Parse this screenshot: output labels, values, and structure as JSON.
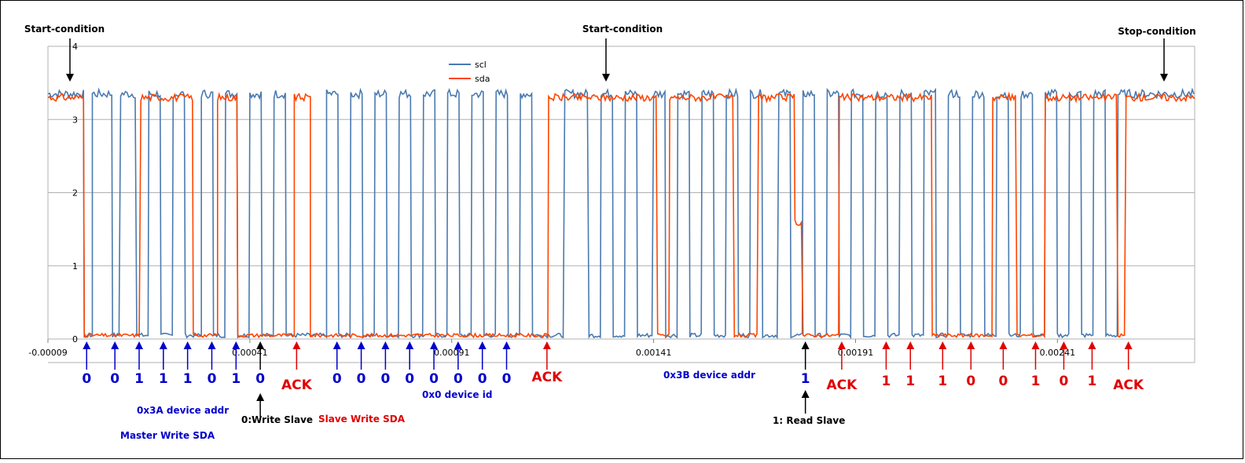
{
  "chart_data": {
    "type": "line",
    "title": "",
    "xlabel": "",
    "ylabel": "",
    "ylim": [
      0,
      4
    ],
    "xlim": [
      -9e-05,
      0.00275
    ],
    "yticks": [
      "0",
      "1",
      "2",
      "3",
      "4"
    ],
    "xticks": [
      {
        "value": -9e-05,
        "label": "-0.00009"
      },
      {
        "value": 0.00041,
        "label": "0.00041"
      },
      {
        "value": 0.00091,
        "label": "0.00091"
      },
      {
        "value": 0.00141,
        "label": "0.00141"
      },
      {
        "value": 0.00191,
        "label": "0.00191"
      },
      {
        "value": 0.00241,
        "label": "0.00241"
      }
    ],
    "grid": "horizontal",
    "legend_position": "top-center",
    "series": [
      {
        "name": "scl",
        "color": "#4a7ab0",
        "high": 3.35,
        "low": 0.05,
        "idle_high_until": 0.0,
        "low_intervals": [
          [
            0.0,
            2e-05
          ],
          [
            7e-05,
            9e-05
          ],
          [
            0.00013,
            0.00016
          ],
          [
            0.00019,
            0.00022
          ],
          [
            0.00025,
            0.00029
          ],
          [
            0.00032,
            0.00035
          ],
          [
            0.00038,
            0.00041
          ],
          [
            0.00044,
            0.00047
          ],
          [
            0.0005,
            0.0006
          ],
          [
            0.00063,
            0.00066
          ],
          [
            0.00069,
            0.00072
          ],
          [
            0.00075,
            0.00078
          ],
          [
            0.00081,
            0.00084
          ],
          [
            0.00087,
            0.0009
          ],
          [
            0.00093,
            0.00096
          ],
          [
            0.00099,
            0.00102
          ],
          [
            0.00105,
            0.00108
          ],
          [
            0.00111,
            0.00119
          ],
          [
            0.00125,
            0.00128
          ],
          [
            0.00131,
            0.00134
          ],
          [
            0.00137,
            0.00141
          ],
          [
            0.00144,
            0.00147
          ],
          [
            0.0015,
            0.00153
          ],
          [
            0.00156,
            0.00159
          ],
          [
            0.00162,
            0.00165
          ],
          [
            0.00168,
            0.00172
          ],
          [
            0.00175,
            0.00178
          ],
          [
            0.00181,
            0.00184
          ],
          [
            0.00187,
            0.0019
          ],
          [
            0.00193,
            0.00196
          ],
          [
            0.00199,
            0.00202
          ],
          [
            0.00205,
            0.00208
          ],
          [
            0.00211,
            0.00214
          ],
          [
            0.00217,
            0.0022
          ],
          [
            0.00223,
            0.00226
          ],
          [
            0.00229,
            0.00232
          ],
          [
            0.00235,
            0.00238
          ],
          [
            0.00241,
            0.00244
          ],
          [
            0.00247,
            0.0025
          ],
          [
            0.00253,
            0.00256
          ]
        ]
      },
      {
        "name": "sda",
        "color": "#ff4500",
        "high": 3.3,
        "low": 0.05,
        "segments": [
          [
            -9e-05,
            3.3
          ],
          [
            0.0,
            0.05
          ],
          [
            0.00014,
            3.3
          ],
          [
            0.00027,
            0.05
          ],
          [
            0.00033,
            3.3
          ],
          [
            0.00038,
            0.05
          ],
          [
            0.00052,
            3.3
          ],
          [
            0.00056,
            0.05
          ],
          [
            0.00115,
            3.3
          ],
          [
            0.0014,
            3.3
          ],
          [
            0.00142,
            0.05
          ],
          [
            0.00145,
            3.3
          ],
          [
            0.00161,
            0.05
          ],
          [
            0.00167,
            3.3
          ],
          [
            0.00176,
            1.6
          ],
          [
            0.00178,
            0.05
          ],
          [
            0.00187,
            3.3
          ],
          [
            0.0021,
            0.05
          ],
          [
            0.00225,
            3.3
          ],
          [
            0.00231,
            0.05
          ],
          [
            0.00238,
            3.3
          ],
          [
            0.00256,
            0.05
          ],
          [
            0.00258,
            3.3
          ],
          [
            0.00275,
            3.3
          ]
        ]
      }
    ]
  },
  "annotations": {
    "top": [
      {
        "text": "Start-condition",
        "x": -7e-05,
        "style": "black"
      },
      {
        "text": "Start-condition",
        "x": 0.00124,
        "style": "black"
      },
      {
        "text": "Stop-condition",
        "x": 0.00264,
        "style": "black"
      }
    ],
    "bits": [
      {
        "text": "0",
        "x": 0.0,
        "color": "blue"
      },
      {
        "text": "0",
        "x": 7e-05,
        "color": "blue"
      },
      {
        "text": "1",
        "x": 0.00013,
        "color": "blue"
      },
      {
        "text": "1",
        "x": 0.00019,
        "color": "blue"
      },
      {
        "text": "1",
        "x": 0.00025,
        "color": "blue"
      },
      {
        "text": "0",
        "x": 0.00031,
        "color": "blue"
      },
      {
        "text": "1",
        "x": 0.00037,
        "color": "blue"
      },
      {
        "text": "0",
        "x": 0.00043,
        "color": "blue",
        "arrow": "black"
      },
      {
        "text": "ACK",
        "x": 0.00052,
        "color": "red"
      },
      {
        "text": "0",
        "x": 0.00062,
        "color": "blue"
      },
      {
        "text": "0",
        "x": 0.00068,
        "color": "blue"
      },
      {
        "text": "0",
        "x": 0.00074,
        "color": "blue"
      },
      {
        "text": "0",
        "x": 0.0008,
        "color": "blue"
      },
      {
        "text": "0",
        "x": 0.00086,
        "color": "blue"
      },
      {
        "text": "0",
        "x": 0.00092,
        "color": "blue"
      },
      {
        "text": "0",
        "x": 0.00098,
        "color": "blue"
      },
      {
        "text": "0",
        "x": 0.00104,
        "color": "blue"
      },
      {
        "text": "ACK",
        "x": 0.00114,
        "color": "red"
      },
      {
        "text": "1",
        "x": 0.00178,
        "color": "blue",
        "arrow": "black"
      },
      {
        "text": "ACK",
        "x": 0.00187,
        "color": "red"
      },
      {
        "text": "1",
        "x": 0.00198,
        "color": "red"
      },
      {
        "text": "1",
        "x": 0.00204,
        "color": "red"
      },
      {
        "text": "1",
        "x": 0.00212,
        "color": "red"
      },
      {
        "text": "0",
        "x": 0.00219,
        "color": "red"
      },
      {
        "text": "0",
        "x": 0.00227,
        "color": "red"
      },
      {
        "text": "1",
        "x": 0.00235,
        "color": "red"
      },
      {
        "text": "0",
        "x": 0.00242,
        "color": "red"
      },
      {
        "text": "1",
        "x": 0.00249,
        "color": "red"
      },
      {
        "text": "ACK",
        "x": 0.00258,
        "color": "red"
      }
    ],
    "notes": {
      "device_addr_write": "0x3A device addr",
      "master_write": "Master Write SDA",
      "write_slave": "0:Write Slave",
      "slave_write": "Slave Write SDA",
      "device_id": "0x0 device id",
      "device_addr_read": "0x3B device addr",
      "read_slave": "1: Read Slave"
    }
  }
}
